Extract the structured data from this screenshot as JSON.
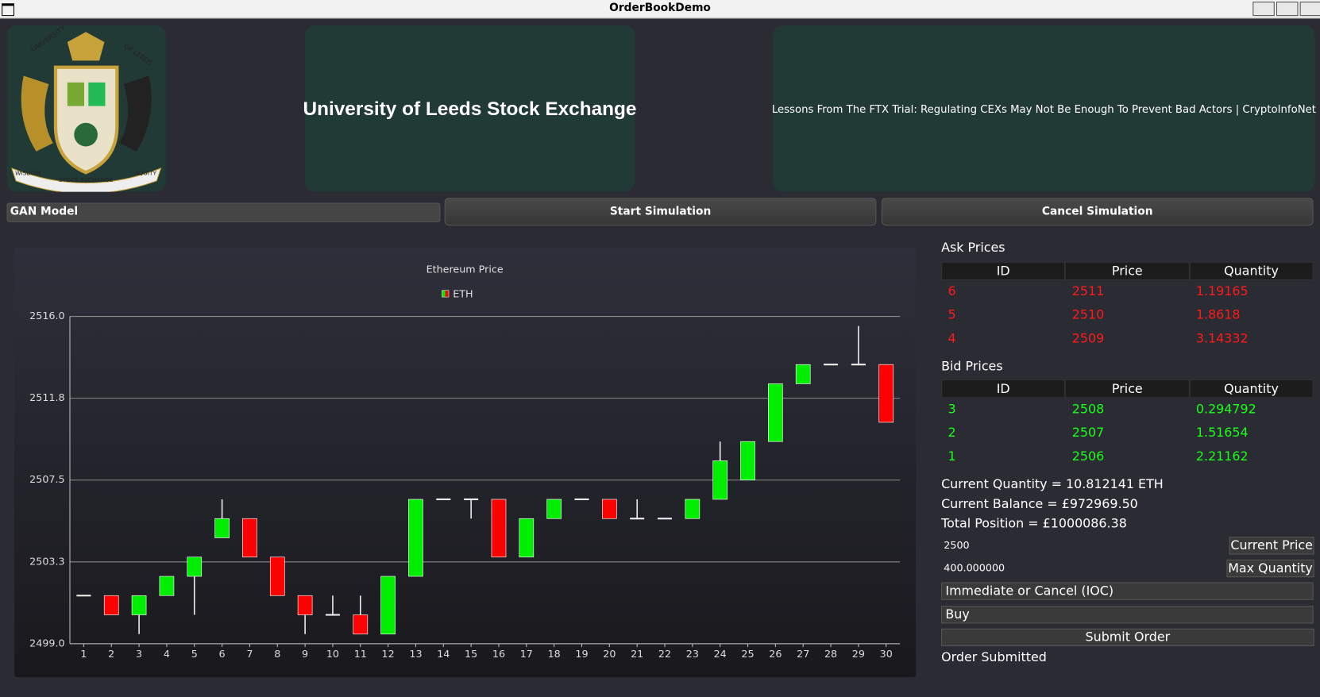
{
  "window": {
    "title": "OrderBookDemo"
  },
  "logo": {
    "top_left": "UNIVERSITY",
    "top_right": "OF LEEDS",
    "bottom_left": "WISDOM",
    "bottom_center": "STOCK EXCHANGE",
    "bottom_right": "AQUITY"
  },
  "header": {
    "title": "University of Leeds Stock Exchange",
    "news": "Lessons From The FTX Trial: Regulating CEXs May Not Be Enough To Prevent Bad Actors | CryptoInfoNet"
  },
  "controls": {
    "model": "GAN Model",
    "start": "Start Simulation",
    "cancel": "Cancel Simulation"
  },
  "chart_data": {
    "type": "candlestick",
    "title": "Ethereum Price",
    "categories": [
      "1",
      "2",
      "3",
      "4",
      "5",
      "6",
      "7",
      "8",
      "9",
      "10",
      "11",
      "12",
      "13",
      "14",
      "15",
      "16",
      "17",
      "18",
      "19",
      "20",
      "21",
      "22",
      "23",
      "24",
      "25",
      "26",
      "27",
      "28",
      "29",
      "30"
    ],
    "series": [
      {
        "name": "ETH",
        "up_color": "#00ee00",
        "down_color": "#ff0000",
        "open": [
          2501.5,
          2501.5,
          2500.5,
          2501.5,
          2502.5,
          2504.5,
          2505.5,
          2503.5,
          2501.5,
          2500.5,
          2500.5,
          2499.5,
          2502.5,
          2506.5,
          2506.5,
          2506.5,
          2503.5,
          2505.5,
          2506.5,
          2506.5,
          2505.5,
          2505.5,
          2505.5,
          2506.5,
          2507.5,
          2509.5,
          2512.5,
          2513.5,
          2513.5,
          2513.5
        ],
        "high": [
          2501.5,
          2501.5,
          2501.5,
          2502.5,
          2503.5,
          2506.5,
          2505.5,
          2503.5,
          2501.5,
          2501.5,
          2501.5,
          2502.5,
          2506.5,
          2506.5,
          2506.5,
          2506.5,
          2505.5,
          2506.5,
          2506.5,
          2506.5,
          2506.5,
          2505.5,
          2506.5,
          2509.5,
          2509.5,
          2512.5,
          2513.5,
          2513.5,
          2515.5,
          2513.5
        ],
        "low": [
          2501.5,
          2500.5,
          2499.5,
          2501.5,
          2500.5,
          2504.5,
          2503.5,
          2501.5,
          2499.5,
          2500.5,
          2499.5,
          2499.5,
          2502.5,
          2506.5,
          2505.5,
          2503.5,
          2503.5,
          2505.5,
          2506.5,
          2505.5,
          2505.5,
          2505.5,
          2505.5,
          2506.5,
          2507.5,
          2509.5,
          2512.5,
          2513.5,
          2513.5,
          2510.5
        ],
        "close": [
          2501.5,
          2500.5,
          2501.5,
          2502.5,
          2503.5,
          2505.5,
          2503.5,
          2501.5,
          2500.5,
          2500.5,
          2499.5,
          2502.5,
          2506.5,
          2506.5,
          2506.5,
          2503.5,
          2505.5,
          2506.5,
          2506.5,
          2505.5,
          2505.5,
          2505.5,
          2506.5,
          2508.5,
          2509.5,
          2512.5,
          2513.5,
          2513.5,
          2513.5,
          2510.5
        ]
      }
    ],
    "ylim": [
      2499.0,
      2516.0
    ],
    "yticks": [
      {
        "value": 2499.0,
        "label": "2499.0"
      },
      {
        "value": 2503.25,
        "label": "2503.3"
      },
      2507.5,
      {
        "value": 2511.75,
        "label": "2511.8"
      },
      {
        "value": 2516.0,
        "label": "2516.0"
      }
    ],
    "grid": true,
    "legend": "top"
  },
  "order_book": {
    "asks": {
      "title": "Ask Prices",
      "columns": [
        "ID",
        "Price",
        "Quantity"
      ],
      "rows": [
        [
          6,
          2511,
          1.19165
        ],
        [
          5,
          2510,
          1.8618
        ],
        [
          4,
          2509,
          3.14332
        ]
      ]
    },
    "bids": {
      "title": "Bid Prices",
      "columns": [
        "ID",
        "Price",
        "Quantity"
      ],
      "rows": [
        [
          3,
          2508,
          0.294792
        ],
        [
          2,
          2507,
          1.51654
        ],
        [
          1,
          2506,
          2.21162
        ]
      ]
    }
  },
  "status": {
    "quantity": "Current Quantity = 10.812141 ETH",
    "balance": "Current Balance = £972969.50",
    "position": "Total Position = £1000086.38"
  },
  "order_form": {
    "price": "2500",
    "price_button": "Current Price",
    "quantity": "400.000000",
    "quantity_button": "Max Quantity",
    "order_type": "Immediate or Cancel (IOC)",
    "side": "Buy",
    "submit": "Submit Order",
    "message": "Order Submitted"
  }
}
